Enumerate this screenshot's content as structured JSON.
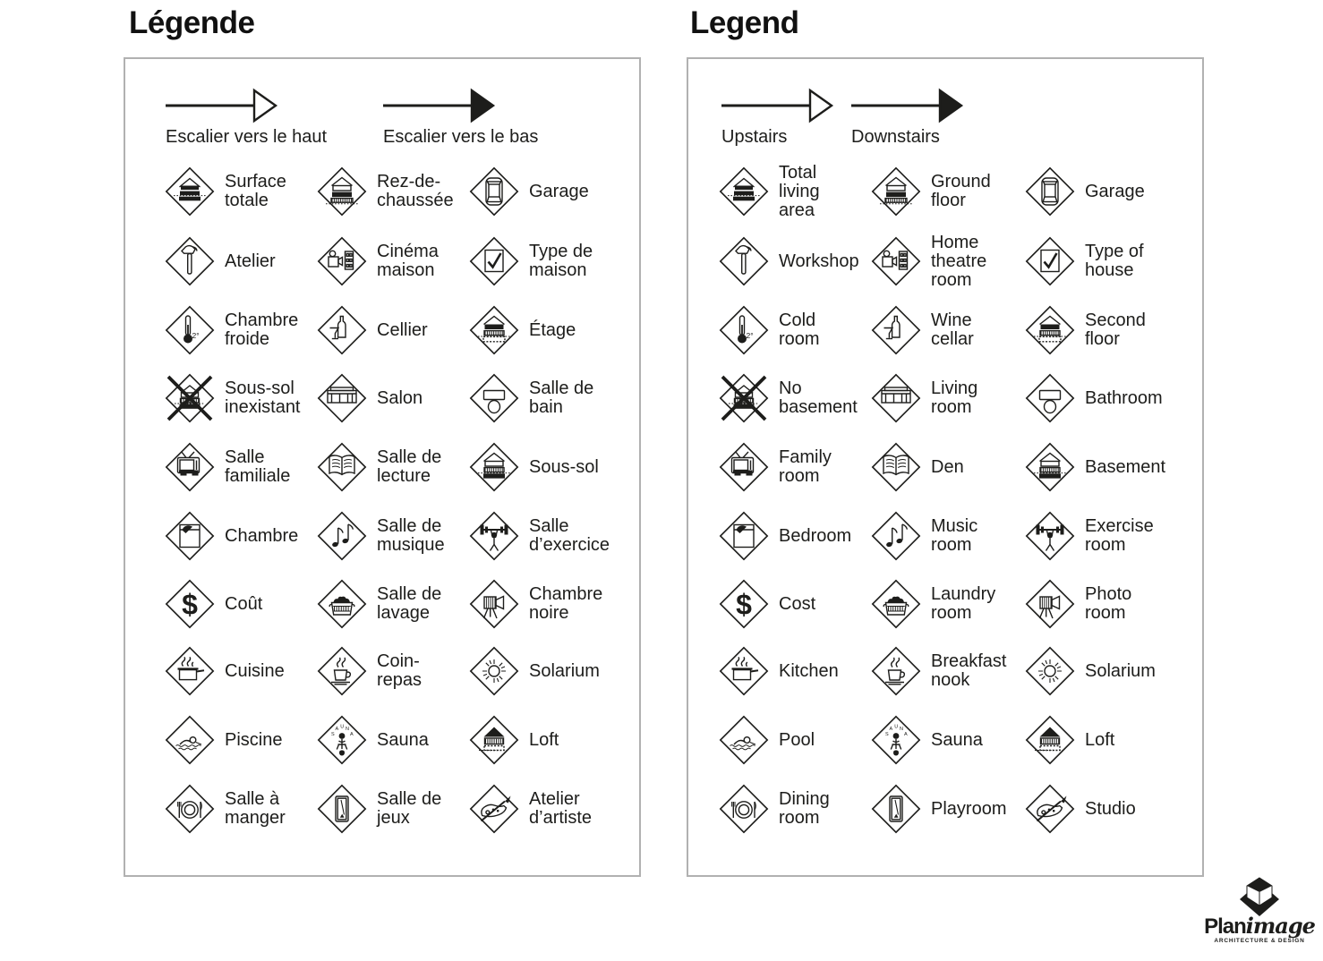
{
  "colors": {
    "ink": "#1d1d1b",
    "panel_border": "#b1b1b1",
    "background": "#ffffff"
  },
  "panels": [
    {
      "id": "fr",
      "title": "Légende",
      "arrows": [
        {
          "label": "Escalier vers le haut",
          "head": "outline"
        },
        {
          "label": "Escalier vers le bas",
          "head": "filled"
        }
      ],
      "items": [
        {
          "icon": "house-total-icon",
          "label": "Surface\ntotale"
        },
        {
          "icon": "house-ground-floor-icon",
          "label": "Rez-de-\nchaussée"
        },
        {
          "icon": "car-icon",
          "label": "Garage"
        },
        {
          "icon": "hammer-icon",
          "label": "Atelier"
        },
        {
          "icon": "projector-icon",
          "label": "Cinéma\nmaison"
        },
        {
          "icon": "checkbox-icon",
          "label": "Type de\nmaison"
        },
        {
          "icon": "thermometer-icon",
          "label": "Chambre\nfroide"
        },
        {
          "icon": "wine-icon",
          "label": "Cellier"
        },
        {
          "icon": "house-second-floor-icon",
          "label": "Étage"
        },
        {
          "icon": "no-basement-icon",
          "label": "Sous-sol\ninexistant"
        },
        {
          "icon": "sofa-icon",
          "label": "Salon"
        },
        {
          "icon": "toilet-icon",
          "label": "Salle de\nbain"
        },
        {
          "icon": "tv-icon",
          "label": "Salle\nfamiliale"
        },
        {
          "icon": "book-icon",
          "label": "Salle de\nlecture"
        },
        {
          "icon": "house-basement-icon",
          "label": "Sous-sol"
        },
        {
          "icon": "bed-icon",
          "label": "Chambre"
        },
        {
          "icon": "music-notes-icon",
          "label": "Salle de\nmusique"
        },
        {
          "icon": "exercise-icon",
          "label": "Salle\nd’exercice"
        },
        {
          "icon": "dollar-icon",
          "label": "Coût"
        },
        {
          "icon": "laundry-basket-icon",
          "label": "Salle de\nlavage"
        },
        {
          "icon": "camera-tripod-icon",
          "label": "Chambre\nnoire"
        },
        {
          "icon": "pot-icon",
          "label": "Cuisine"
        },
        {
          "icon": "cup-icon",
          "label": "Coin-\nrepas"
        },
        {
          "icon": "sun-icon",
          "label": "Solarium"
        },
        {
          "icon": "swimmer-icon",
          "label": "Piscine"
        },
        {
          "icon": "sauna-icon",
          "label": "Sauna"
        },
        {
          "icon": "house-loft-icon",
          "label": "Loft"
        },
        {
          "icon": "plate-cutlery-icon",
          "label": "Salle à\nmanger"
        },
        {
          "icon": "pool-table-icon",
          "label": "Salle de\njeux"
        },
        {
          "icon": "palette-icon",
          "label": "Atelier\nd’artiste"
        }
      ]
    },
    {
      "id": "en",
      "title": "Legend",
      "arrows": [
        {
          "label": "Upstairs",
          "head": "outline"
        },
        {
          "label": "Downstairs",
          "head": "filled"
        }
      ],
      "items": [
        {
          "icon": "house-total-icon",
          "label": "Total\nliving\narea"
        },
        {
          "icon": "house-ground-floor-icon",
          "label": "Ground\nfloor"
        },
        {
          "icon": "car-icon",
          "label": "Garage"
        },
        {
          "icon": "hammer-icon",
          "label": "Workshop"
        },
        {
          "icon": "projector-icon",
          "label": "Home\ntheatre\nroom"
        },
        {
          "icon": "checkbox-icon",
          "label": "Type of\nhouse"
        },
        {
          "icon": "thermometer-icon",
          "label": "Cold\nroom"
        },
        {
          "icon": "wine-icon",
          "label": "Wine\ncellar"
        },
        {
          "icon": "house-second-floor-icon",
          "label": "Second\nfloor"
        },
        {
          "icon": "no-basement-icon",
          "label": "No\nbasement"
        },
        {
          "icon": "sofa-icon",
          "label": "Living\nroom"
        },
        {
          "icon": "toilet-icon",
          "label": "Bathroom"
        },
        {
          "icon": "tv-icon",
          "label": "Family\nroom"
        },
        {
          "icon": "book-icon",
          "label": "Den"
        },
        {
          "icon": "house-basement-icon",
          "label": "Basement"
        },
        {
          "icon": "bed-icon",
          "label": "Bedroom"
        },
        {
          "icon": "music-notes-icon",
          "label": "Music\nroom"
        },
        {
          "icon": "exercise-icon",
          "label": "Exercise\nroom"
        },
        {
          "icon": "dollar-icon",
          "label": "Cost"
        },
        {
          "icon": "laundry-basket-icon",
          "label": "Laundry\nroom"
        },
        {
          "icon": "camera-tripod-icon",
          "label": "Photo\nroom"
        },
        {
          "icon": "pot-icon",
          "label": "Kitchen"
        },
        {
          "icon": "cup-icon",
          "label": "Breakfast\nnook"
        },
        {
          "icon": "sun-icon",
          "label": "Solarium"
        },
        {
          "icon": "swimmer-icon",
          "label": "Pool"
        },
        {
          "icon": "sauna-icon",
          "label": "Sauna"
        },
        {
          "icon": "house-loft-icon",
          "label": "Loft"
        },
        {
          "icon": "plate-cutlery-icon",
          "label": "Dining\nroom"
        },
        {
          "icon": "pool-table-icon",
          "label": "Playroom"
        },
        {
          "icon": "palette-icon",
          "label": "Studio"
        }
      ]
    }
  ],
  "logo": {
    "brand_bold": "Plan",
    "brand_italic": "image",
    "tagline": "ARCHITECTURE & DESIGN"
  }
}
